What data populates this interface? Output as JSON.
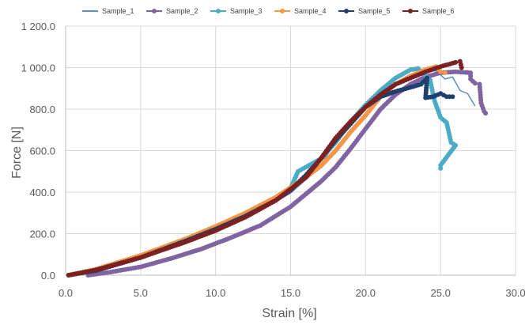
{
  "chart_data": {
    "type": "line",
    "title": "",
    "xlabel": "Strain [%]",
    "ylabel": "Force [N]",
    "xlim": [
      0,
      30
    ],
    "ylim": [
      0,
      1200
    ],
    "x_ticks": [
      0,
      5,
      10,
      15,
      20,
      25,
      30
    ],
    "x_tick_labels": [
      "0.0",
      "5.0",
      "10.0",
      "15.0",
      "20.0",
      "25.0",
      "30.0"
    ],
    "y_ticks": [
      0,
      200,
      400,
      600,
      800,
      1000,
      1200
    ],
    "y_tick_labels": [
      "0.0",
      "200.0",
      "400.0",
      "600.0",
      "800.0",
      "1 000.0",
      "1 200.0"
    ],
    "grid": true,
    "legend_position": "top",
    "series": [
      {
        "name": "Sample_1",
        "color": "#5b8fc9",
        "marker": false,
        "points": [
          [
            0.2,
            0
          ],
          [
            2,
            20
          ],
          [
            5,
            85
          ],
          [
            8,
            165
          ],
          [
            10,
            220
          ],
          [
            12,
            282
          ],
          [
            14,
            355
          ],
          [
            15,
            395
          ],
          [
            16,
            460
          ],
          [
            17,
            530
          ],
          [
            18,
            640
          ],
          [
            19,
            720
          ],
          [
            20,
            800
          ],
          [
            21,
            860
          ],
          [
            22,
            920
          ],
          [
            23,
            965
          ],
          [
            24,
            980
          ],
          [
            24.7,
            985
          ],
          [
            25.3,
            945
          ],
          [
            25.8,
            955
          ],
          [
            26.3,
            890
          ],
          [
            26.8,
            875
          ],
          [
            27.3,
            815
          ]
        ]
      },
      {
        "name": "Sample_2",
        "color": "#8064a2",
        "marker": true,
        "points": [
          [
            1.5,
            0
          ],
          [
            3,
            15
          ],
          [
            5,
            40
          ],
          [
            7,
            80
          ],
          [
            9,
            125
          ],
          [
            11,
            180
          ],
          [
            13,
            240
          ],
          [
            15,
            330
          ],
          [
            17,
            450
          ],
          [
            18,
            520
          ],
          [
            19,
            610
          ],
          [
            20,
            705
          ],
          [
            21,
            800
          ],
          [
            22,
            870
          ],
          [
            23,
            920
          ],
          [
            24,
            955
          ],
          [
            25,
            975
          ],
          [
            26,
            980
          ],
          [
            27,
            975
          ],
          [
            27,
            945
          ],
          [
            27.3,
            925
          ],
          [
            27.6,
            920
          ],
          [
            27.7,
            830
          ],
          [
            27.9,
            790
          ],
          [
            28,
            780
          ]
        ]
      },
      {
        "name": "Sample_3",
        "color": "#4bacc6",
        "marker": true,
        "points": [
          [
            0.2,
            0
          ],
          [
            2,
            25
          ],
          [
            5,
            90
          ],
          [
            8,
            170
          ],
          [
            10,
            225
          ],
          [
            12,
            285
          ],
          [
            14,
            360
          ],
          [
            15,
            420
          ],
          [
            15.5,
            500
          ],
          [
            16,
            520
          ],
          [
            17,
            560
          ],
          [
            18,
            640
          ],
          [
            19,
            740
          ],
          [
            20,
            820
          ],
          [
            21,
            890
          ],
          [
            22,
            950
          ],
          [
            23,
            990
          ],
          [
            23.5,
            995
          ],
          [
            24,
            960
          ],
          [
            24.3,
            940
          ],
          [
            24.6,
            840
          ],
          [
            25,
            760
          ],
          [
            25.4,
            735
          ],
          [
            25.7,
            640
          ],
          [
            26,
            625
          ],
          [
            25,
            530
          ],
          [
            25,
            515
          ]
        ]
      },
      {
        "name": "Sample_4",
        "color": "#f79646",
        "marker": true,
        "points": [
          [
            0.2,
            0
          ],
          [
            2,
            28
          ],
          [
            5,
            95
          ],
          [
            8,
            175
          ],
          [
            10,
            235
          ],
          [
            12,
            300
          ],
          [
            14,
            375
          ],
          [
            16,
            470
          ],
          [
            17,
            525
          ],
          [
            18,
            600
          ],
          [
            19,
            690
          ],
          [
            20,
            770
          ],
          [
            21,
            860
          ],
          [
            22,
            920
          ],
          [
            23,
            960
          ],
          [
            24,
            990
          ],
          [
            24.7,
            1005
          ],
          [
            25,
            980
          ],
          [
            25.3,
            975
          ]
        ]
      },
      {
        "name": "Sample_5",
        "color": "#1f3f6e",
        "marker": true,
        "points": [
          [
            0.2,
            0
          ],
          [
            2,
            22
          ],
          [
            5,
            85
          ],
          [
            8,
            165
          ],
          [
            10,
            222
          ],
          [
            12,
            285
          ],
          [
            14,
            360
          ],
          [
            15,
            410
          ],
          [
            16,
            480
          ],
          [
            17,
            560
          ],
          [
            18,
            650
          ],
          [
            19,
            730
          ],
          [
            20,
            810
          ],
          [
            21,
            860
          ],
          [
            22,
            885
          ],
          [
            23,
            905
          ],
          [
            23.7,
            920
          ],
          [
            24.1,
            950
          ],
          [
            24,
            855
          ],
          [
            24.5,
            860
          ],
          [
            25,
            875
          ],
          [
            25.4,
            860
          ],
          [
            25.8,
            860
          ]
        ]
      },
      {
        "name": "Sample_6",
        "color": "#7b2121",
        "marker": true,
        "points": [
          [
            0.2,
            0
          ],
          [
            2,
            25
          ],
          [
            5,
            85
          ],
          [
            8,
            160
          ],
          [
            10,
            215
          ],
          [
            12,
            280
          ],
          [
            14,
            360
          ],
          [
            16,
            470
          ],
          [
            17,
            560
          ],
          [
            18,
            660
          ],
          [
            19,
            740
          ],
          [
            20,
            810
          ],
          [
            21,
            870
          ],
          [
            22,
            920
          ],
          [
            23,
            950
          ],
          [
            24,
            980
          ],
          [
            25,
            1005
          ],
          [
            25.5,
            1015
          ],
          [
            26,
            1025
          ],
          [
            26.3,
            1030
          ],
          [
            26.4,
            1000
          ]
        ]
      }
    ]
  }
}
